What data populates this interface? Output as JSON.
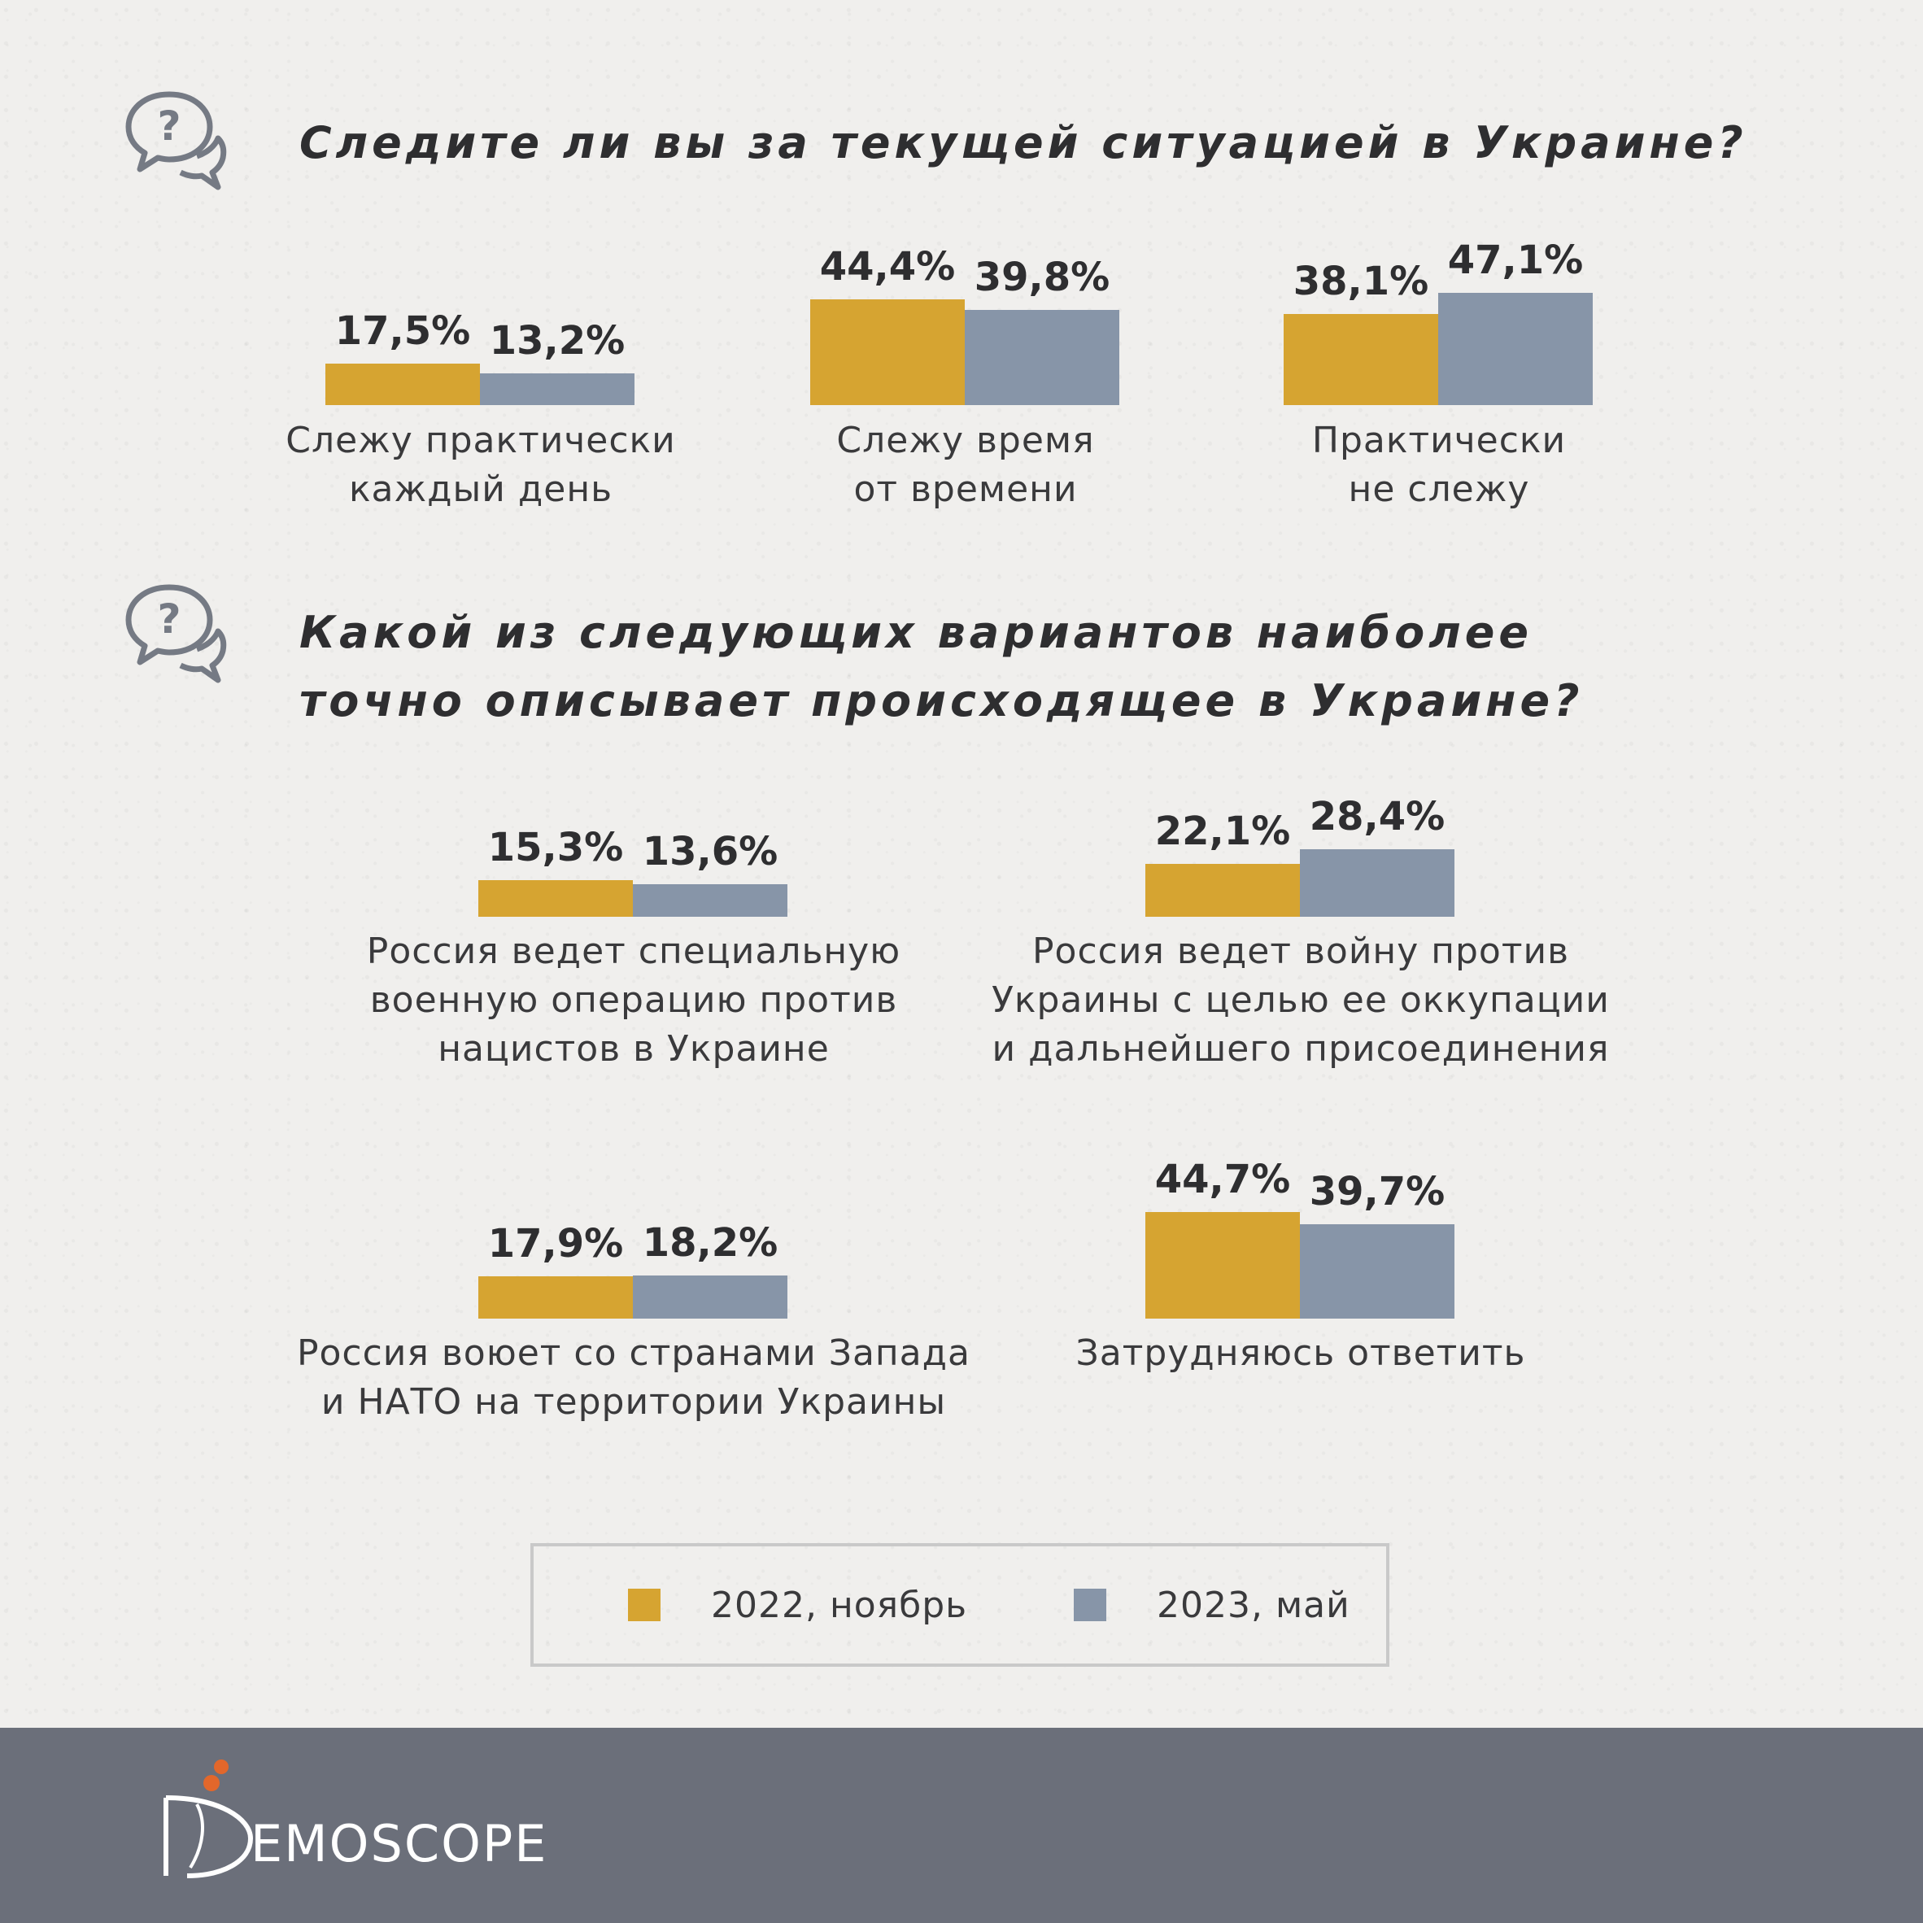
{
  "questions": [
    {
      "lines": [
        "Следите ли вы за текущей ситуацией в Украине?"
      ],
      "items": [
        {
          "label": [
            "Слежу практически",
            "каждый день"
          ],
          "v2022": 17.5,
          "v2023": 13.2,
          "t2022": "17,5%",
          "t2023": "13,2%"
        },
        {
          "label": [
            "Слежу время",
            "от времени"
          ],
          "v2022": 44.4,
          "v2023": 39.8,
          "t2022": "44,4%",
          "t2023": "39,8%"
        },
        {
          "label": [
            "Практически",
            "не слежу"
          ],
          "v2022": 38.1,
          "v2023": 47.1,
          "t2022": "38,1%",
          "t2023": "47,1%"
        }
      ]
    },
    {
      "lines": [
        "Какой из следующих вариантов наиболее",
        "точно описывает происходящее в Украине?"
      ],
      "items": [
        {
          "label": [
            "Россия ведет специальную",
            "военную операцию против",
            "нацистов в Украине"
          ],
          "v2022": 15.3,
          "v2023": 13.6,
          "t2022": "15,3%",
          "t2023": "13,6%"
        },
        {
          "label": [
            "Россия ведет войну против",
            "Украины с целью ее оккупации",
            "и дальнейшего присоединения"
          ],
          "v2022": 22.1,
          "v2023": 28.4,
          "t2022": "22,1%",
          "t2023": "28,4%"
        },
        {
          "label": [
            "Россия воюет со странами Запада",
            "и НАТО на территории Украины"
          ],
          "v2022": 17.9,
          "v2023": 18.2,
          "t2022": "17,9%",
          "t2023": "18,2%"
        },
        {
          "label": [
            "Затрудняюсь ответить"
          ],
          "v2022": 44.7,
          "v2023": 39.7,
          "t2022": "44,7%",
          "t2023": "39,7%"
        }
      ]
    }
  ],
  "legend": {
    "item_2022": "2022, ноябрь",
    "item_2023": "2023, май"
  },
  "logo": {
    "text": "EMOSCOPE",
    "initial": "D"
  },
  "colors": {
    "series_2022": "#d6a431",
    "series_2023": "#8795a8",
    "footer": "#6b6f7a"
  },
  "chart_data": [
    {
      "type": "bar",
      "title": "Следите ли вы за текущей ситуацией в Украине?",
      "categories": [
        "Слежу практически каждый день",
        "Слежу время от времени",
        "Практически не слежу"
      ],
      "series": [
        {
          "name": "2022, ноябрь",
          "values": [
            17.5,
            44.4,
            38.1
          ]
        },
        {
          "name": "2023, май",
          "values": [
            13.2,
            39.8,
            47.1
          ]
        }
      ],
      "unit": "%"
    },
    {
      "type": "bar",
      "title": "Какой из следующих вариантов наиболее точно описывает происходящее в Украине?",
      "categories": [
        "Россия ведет специальную военную операцию против нацистов в Украине",
        "Россия ведет войну против Украины с целью ее оккупации и дальнейшего присоединения",
        "Россия воюет со странами Запада и НАТО на территории Украины",
        "Затрудняюсь ответить"
      ],
      "series": [
        {
          "name": "2022, ноябрь",
          "values": [
            15.3,
            22.1,
            17.9,
            44.7
          ]
        },
        {
          "name": "2023, май",
          "values": [
            13.6,
            28.4,
            18.2,
            39.7
          ]
        }
      ],
      "unit": "%"
    }
  ]
}
